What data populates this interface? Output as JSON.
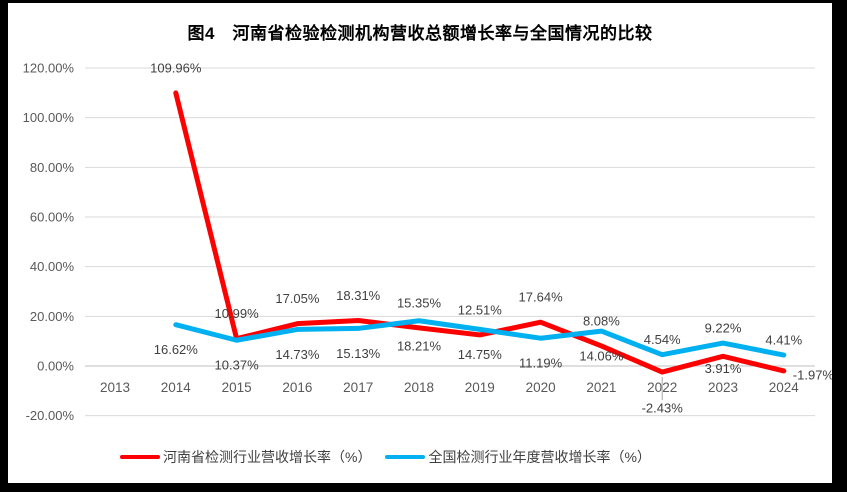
{
  "title": "图4　河南省检验检测机构营收总额增长率与全国情况的比较",
  "colors": {
    "frame": "#000000",
    "panel_background": "#ffffff",
    "henan_series": "#FF0000",
    "national_series": "#00B0F0",
    "gridline": "#D9D9D9",
    "axis_line": "#BFBFBF",
    "axis_label": "#595959",
    "data_label": "#404040",
    "leader_line": "#A6A6A6"
  },
  "chart_data": {
    "type": "line",
    "title": "图4　河南省检验检测机构营收总额增长率与全国情况的比较",
    "categories": [
      "2013",
      "2014",
      "2015",
      "2016",
      "2017",
      "2018",
      "2019",
      "2020",
      "2021",
      "2022",
      "2023",
      "2024"
    ],
    "series": [
      {
        "name": "河南省检测行业营收增长率（%）",
        "color": "#FF0000",
        "values": [
          null,
          109.96,
          10.99,
          17.05,
          18.31,
          15.35,
          12.51,
          17.64,
          8.08,
          -2.43,
          3.91,
          -1.97
        ],
        "labels": [
          null,
          "109.96%",
          "10.99%",
          "17.05%",
          "18.31%",
          "15.35%",
          "12.51%",
          "17.64%",
          "8.08%",
          "-2.43%",
          "3.91%",
          "-1.97%"
        ]
      },
      {
        "name": "全国检测行业年度营收增长率（%）",
        "color": "#00B0F0",
        "values": [
          null,
          16.62,
          10.37,
          14.73,
          15.13,
          18.21,
          14.75,
          11.19,
          14.06,
          4.54,
          9.22,
          4.41
        ],
        "labels": [
          null,
          "16.62%",
          "10.37%",
          "14.73%",
          "15.13%",
          "18.21%",
          "14.75%",
          "11.19%",
          "14.06%",
          "4.54%",
          "9.22%",
          "4.41%"
        ]
      }
    ],
    "y_ticks": [
      "120.00%",
      "100.00%",
      "80.00%",
      "60.00%",
      "40.00%",
      "20.00%",
      "0.00%",
      "-20.00%"
    ],
    "ylim": [
      -20,
      120
    ],
    "y_step": 20,
    "xlabel": "",
    "ylabel": "",
    "grid": true,
    "legend_position": "bottom"
  }
}
